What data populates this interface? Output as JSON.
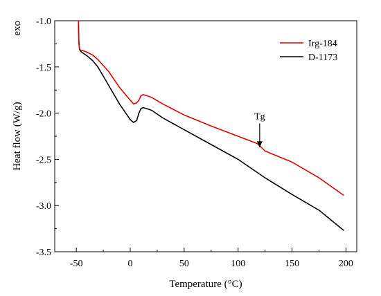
{
  "chart_data": {
    "type": "line",
    "title": "",
    "xlabel": "Temperature (°C)",
    "ylabel": "Heat flow (W/g)",
    "corner_label": "exo",
    "xlim": [
      -70,
      210
    ],
    "ylim": [
      -3.5,
      -1.0
    ],
    "xticks": [
      -50,
      0,
      50,
      100,
      150,
      200
    ],
    "yticks": [
      -1.0,
      -1.5,
      -2.0,
      -2.5,
      -3.0,
      -3.5
    ],
    "xtick_labels": [
      "-50",
      "0",
      "50",
      "100",
      "150",
      "200"
    ],
    "ytick_labels": [
      "-1.0",
      "-1.5",
      "-2.0",
      "-2.5",
      "-3.0",
      "-3.5"
    ],
    "grid": false,
    "legend_position": "top-right",
    "series": [
      {
        "name": "Irg-184",
        "color": "#e00000",
        "x": [
          -48,
          -47.8,
          -47.5,
          -47,
          -46,
          -45,
          -40,
          -35,
          -30,
          -20,
          -10,
          0,
          3,
          6,
          8,
          10,
          12,
          15,
          20,
          30,
          50,
          75,
          100,
          118,
          125,
          150,
          175,
          198
        ],
        "y": [
          -1.0,
          -1.15,
          -1.25,
          -1.3,
          -1.32,
          -1.32,
          -1.34,
          -1.37,
          -1.42,
          -1.55,
          -1.72,
          -1.86,
          -1.9,
          -1.89,
          -1.86,
          -1.81,
          -1.8,
          -1.81,
          -1.83,
          -1.9,
          -2.02,
          -2.14,
          -2.25,
          -2.33,
          -2.41,
          -2.53,
          -2.7,
          -2.89
        ]
      },
      {
        "name": "D-1173",
        "color": "#000000",
        "x": [
          -48,
          -47.8,
          -47.5,
          -47,
          -46,
          -45,
          -40,
          -35,
          -30,
          -20,
          -10,
          0,
          3,
          6,
          8,
          10,
          12,
          15,
          20,
          30,
          50,
          75,
          100,
          125,
          150,
          175,
          198
        ],
        "y": [
          -1.0,
          -1.15,
          -1.25,
          -1.31,
          -1.33,
          -1.34,
          -1.38,
          -1.43,
          -1.5,
          -1.7,
          -1.9,
          -2.07,
          -2.1,
          -2.08,
          -2.0,
          -1.95,
          -1.94,
          -1.95,
          -1.97,
          -2.05,
          -2.18,
          -2.34,
          -2.5,
          -2.7,
          -2.88,
          -3.05,
          -3.27
        ]
      }
    ],
    "annotations": [
      {
        "text": "Tg",
        "x": 120,
        "y": -2.38
      }
    ]
  }
}
